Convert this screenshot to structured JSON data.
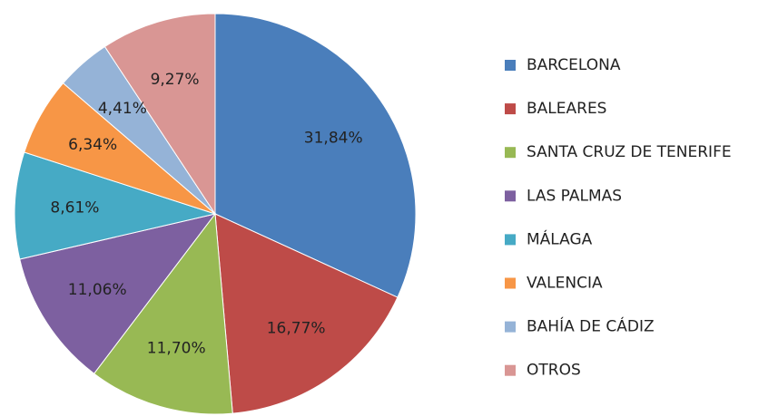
{
  "chart_data": {
    "type": "pie",
    "categories": [
      "BARCELONA",
      "BALEARES",
      "SANTA CRUZ DE TENERIFE",
      "LAS PALMAS",
      "MÁLAGA",
      "VALENCIA",
      "BAHÍA DE CÁDIZ",
      "OTROS"
    ],
    "values": [
      31.84,
      16.77,
      11.7,
      11.06,
      8.61,
      6.34,
      4.41,
      9.27
    ],
    "value_labels": [
      "31,84%",
      "16,77%",
      "11,70%",
      "11,06%",
      "8,61%",
      "6,34%",
      "4,41%",
      "9,27%"
    ],
    "colors": [
      "#4a7ebb",
      "#be4b48",
      "#98b954",
      "#7d60a0",
      "#46aac5",
      "#f79646",
      "#95b3d7",
      "#d99694"
    ],
    "legend": "right"
  }
}
